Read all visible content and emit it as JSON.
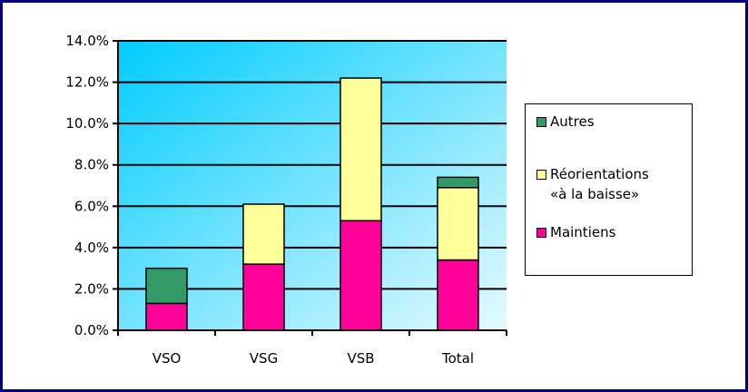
{
  "chart_data": {
    "type": "bar",
    "stacked": true,
    "categories": [
      "VSO",
      "VSG",
      "VSB",
      "Total"
    ],
    "series": [
      {
        "name": "Maintiens",
        "color": "#FF0099",
        "values": [
          1.3,
          3.2,
          5.3,
          3.4
        ]
      },
      {
        "name": "Réorientations «à la baisse»",
        "color": "#FFFF99",
        "values": [
          0.0,
          2.9,
          6.9,
          3.5
        ]
      },
      {
        "name": "Autres",
        "color": "#339966",
        "values": [
          1.7,
          0.0,
          0.0,
          0.5
        ]
      }
    ],
    "ylim": [
      0,
      14
    ],
    "y_ticks": [
      "0.0%",
      "2.0%",
      "4.0%",
      "6.0%",
      "8.0%",
      "10.0%",
      "12.0%",
      "14.0%"
    ],
    "grid": true,
    "legend_position": "right",
    "legend": [
      {
        "label": "Autres",
        "color": "#339966"
      },
      {
        "label": "Réorientations\n«à la baisse»",
        "color": "#FFFF99"
      },
      {
        "label": "Maintiens",
        "color": "#FF0099"
      }
    ]
  },
  "colors": {
    "frame": "#000080",
    "plot_gradient_start": "#00CCFF",
    "plot_gradient_end": "#E6FAFF"
  }
}
